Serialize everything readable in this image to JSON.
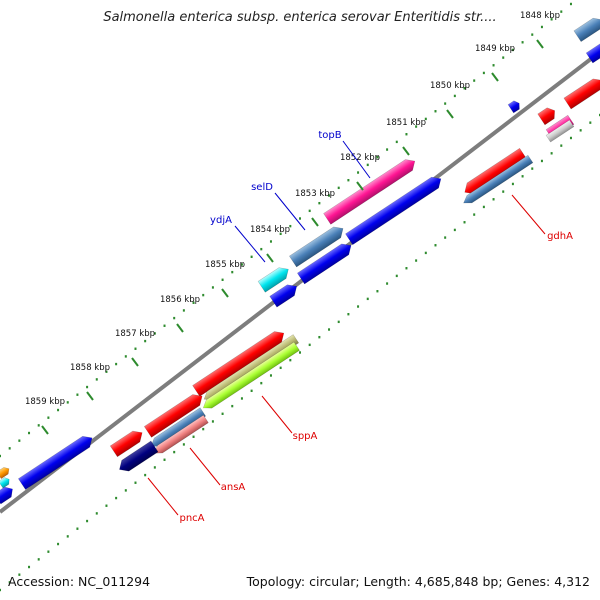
{
  "title": "Salmonella enterica subsp. enterica serovar Enteritidis str....",
  "footer": {
    "accession": "Accession: NC_011294",
    "summary": "Topology: circular; Length: 4,685,848 bp; Genes: 4,312"
  },
  "colors": {
    "backbone": "#7d7d7d",
    "tick_dots": "#2e8b2e",
    "forward_label": "#0000cc",
    "reverse_label": "#dd0000"
  },
  "ticks": [
    {
      "label": "1848 kbp"
    },
    {
      "label": "1849 kbp"
    },
    {
      "label": "1850 kbp"
    },
    {
      "label": "1851 kbp"
    },
    {
      "label": "1852 kbp"
    },
    {
      "label": "1853 kbp"
    },
    {
      "label": "1854 kbp"
    },
    {
      "label": "1855 kbp"
    },
    {
      "label": "1856 kbp"
    },
    {
      "label": "1857 kbp"
    },
    {
      "label": "1858 kbp"
    },
    {
      "label": "1859 kbp"
    }
  ],
  "gene_labels": [
    {
      "name": "topB",
      "strand": "forward"
    },
    {
      "name": "selD",
      "strand": "forward"
    },
    {
      "name": "ydjA",
      "strand": "forward"
    },
    {
      "name": "gdhA",
      "strand": "reverse"
    },
    {
      "name": "sppA",
      "strand": "reverse"
    },
    {
      "name": "ansA",
      "strand": "reverse"
    },
    {
      "name": "pncA",
      "strand": "reverse"
    }
  ]
}
